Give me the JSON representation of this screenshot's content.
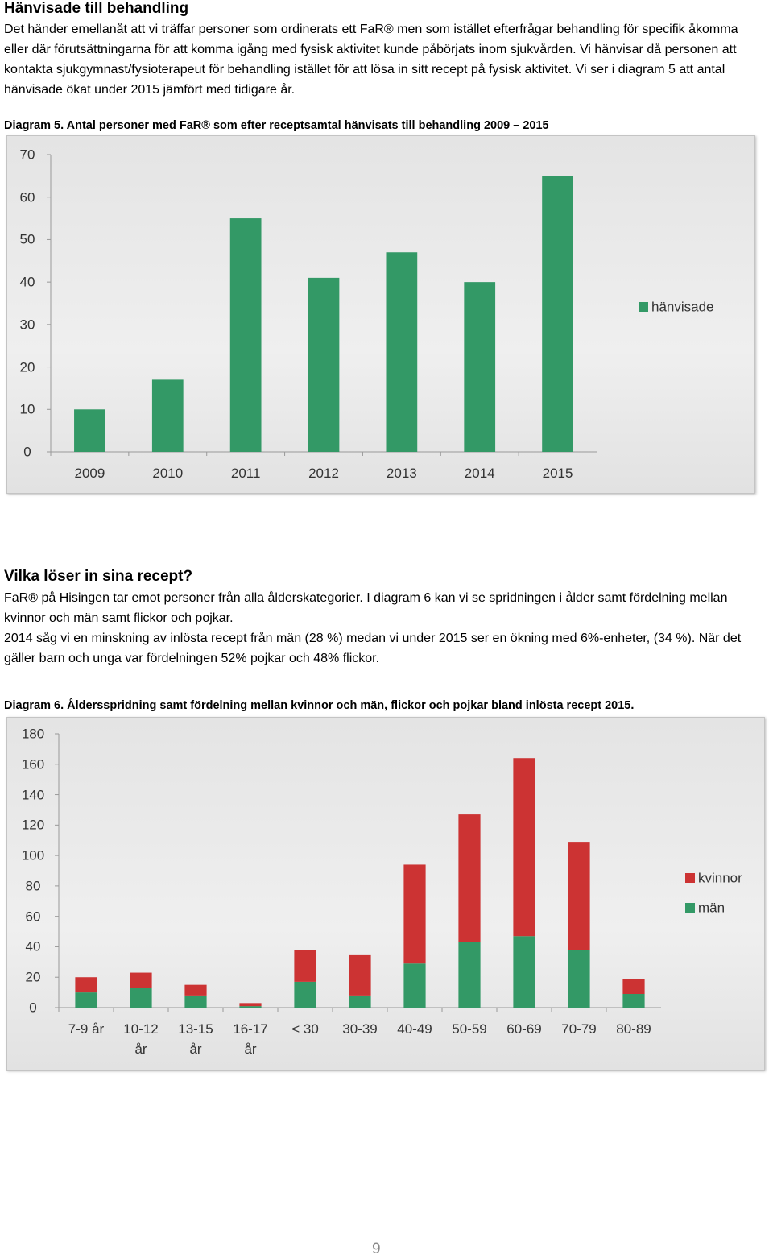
{
  "section1": {
    "title": "Hänvisade till behandling",
    "paragraph": "Det händer emellanåt att vi träffar personer som ordinerats ett FaR® men som istället efterfrågar behandling för specifik åkomma eller där förutsättningarna för att komma igång med fysisk aktivitet kunde påbörjats inom sjukvården. Vi hänvisar då personen att kontakta sjukgymnast/fysioterapeut för behandling istället för att lösa in sitt recept på fysisk aktivitet. Vi ser i diagram 5 att antal hänvisade ökat under 2015 jämfört med tidigare år.",
    "caption": "Diagram 5. Antal personer med FaR® som efter receptsamtal hänvisats till behandling 2009 – 2015"
  },
  "section2": {
    "title": "Vilka löser in sina recept?",
    "paragraphs": [
      "FaR® på Hisingen tar emot personer från alla ålderskategorier. I diagram 6 kan vi se spridningen i ålder samt fördelning mellan kvinnor och män samt flickor och pojkar.",
      "2014 såg vi en minskning av inlösta recept från män (28 %) medan vi under 2015 ser en ökning med 6%-enheter, (34 %). När det gäller barn och unga var fördelningen 52% pojkar och 48% flickor."
    ],
    "caption": "Diagram 6. Åldersspridning samt fördelning mellan kvinnor och män, flickor och pojkar bland inlösta recept 2015."
  },
  "chart_data": [
    {
      "type": "bar",
      "categories": [
        "2009",
        "2010",
        "2011",
        "2012",
        "2013",
        "2014",
        "2015"
      ],
      "series": [
        {
          "name": "hänvisade",
          "color": "#339966",
          "values": [
            10,
            17,
            55,
            41,
            47,
            40,
            65
          ]
        }
      ],
      "ylim": [
        0,
        70
      ],
      "yticks": [
        0,
        10,
        20,
        30,
        40,
        50,
        60,
        70
      ],
      "legend": "right",
      "stacked": false
    },
    {
      "type": "bar",
      "categories": [
        "7-9 år",
        "10-12 år",
        "13-15 år",
        "16-17 år",
        "< 30",
        "30-39",
        "40-49",
        "50-59",
        "60-69",
        "70-79",
        "80-89"
      ],
      "series": [
        {
          "name": "män",
          "color": "#339966",
          "values": [
            10,
            13,
            8,
            1,
            17,
            8,
            29,
            43,
            47,
            38,
            9
          ]
        },
        {
          "name": "kvinnor",
          "color": "#cc3333",
          "values": [
            10,
            10,
            7,
            2,
            21,
            27,
            65,
            84,
            117,
            71,
            10
          ]
        }
      ],
      "ylim": [
        0,
        180
      ],
      "yticks": [
        0,
        20,
        40,
        60,
        80,
        100,
        120,
        140,
        160,
        180
      ],
      "legend": "right",
      "stacked": true
    }
  ],
  "page_number": "9"
}
